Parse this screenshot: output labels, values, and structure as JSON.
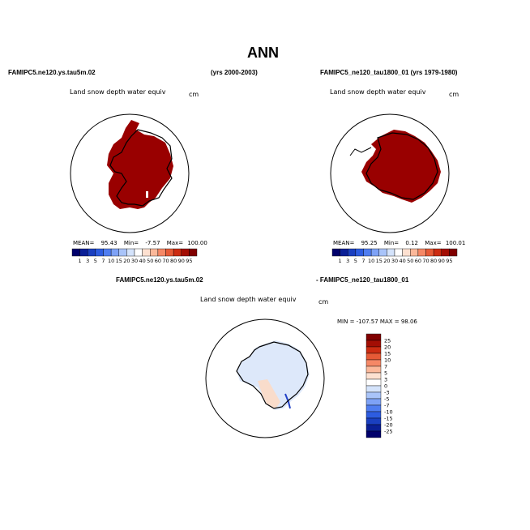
{
  "page": {
    "title": "ANN",
    "left_case": "FAMIPC5.ne120.ys.tau5m.02",
    "left_years": "(yrs 2000-2003)",
    "right_case_years": "FAMIPC5_ne120_tau1800_01 (yrs 1979-1980)",
    "diff_case_a": "FAMIPC5.ne120.ys.tau5m.02",
    "diff_case_b": "- FAMIPC5_ne120_tau1800_01"
  },
  "panels": {
    "left": {
      "variable": "Land snow depth water equiv",
      "units": "cm",
      "stats": {
        "mean_label": "MEAN=",
        "mean": "95.43",
        "min_label": "Min=",
        "min": "-7.57",
        "max_label": "Max=",
        "max": "100.00"
      }
    },
    "right": {
      "variable": "Land snow depth water equiv",
      "units": "cm",
      "stats": {
        "mean_label": "MEAN=",
        "mean": "95.25",
        "min_label": "Min=",
        "min": "0.12",
        "max_label": "Max=",
        "max": "100.01"
      }
    },
    "diff": {
      "variable": "Land snow depth water equiv",
      "units": "cm",
      "minmax": "MIN = -107.57 MAX =  98.06"
    }
  },
  "colorbar_abs": {
    "labels": [
      "1",
      "3",
      "5",
      "7",
      "10",
      "15",
      "20",
      "30",
      "40",
      "50",
      "60",
      "70",
      "80",
      "90",
      "95"
    ],
    "colors": [
      "#00006b",
      "#0a1f96",
      "#1a3fc0",
      "#2d5ce0",
      "#4f7df0",
      "#7ea2f6",
      "#a9c4f9",
      "#d4e3fb",
      "#ffffff",
      "#fde0d0",
      "#fbb89a",
      "#f58866",
      "#e65a36",
      "#cc2c12",
      "#a30e04",
      "#800000"
    ]
  },
  "colorbar_diff": {
    "labels": [
      "25",
      "20",
      "15",
      "10",
      "7",
      "5",
      "3",
      "0",
      "-3",
      "-5",
      "-7",
      "-10",
      "-15",
      "-20",
      "-25"
    ],
    "colors": [
      "#800000",
      "#a30e04",
      "#cc2c12",
      "#e65a36",
      "#f58866",
      "#fbb89a",
      "#fde0d0",
      "#ffffff",
      "#d4e3fb",
      "#a9c4f9",
      "#7ea2f6",
      "#4f7df0",
      "#2d5ce0",
      "#1a3fc0",
      "#0a1f96",
      "#00006b"
    ]
  },
  "map_colors": {
    "snow_max": "#990000",
    "diff_neutral": "#dde8fa",
    "diff_pos": "#f9dccb",
    "diff_neg": "#2040c8"
  }
}
